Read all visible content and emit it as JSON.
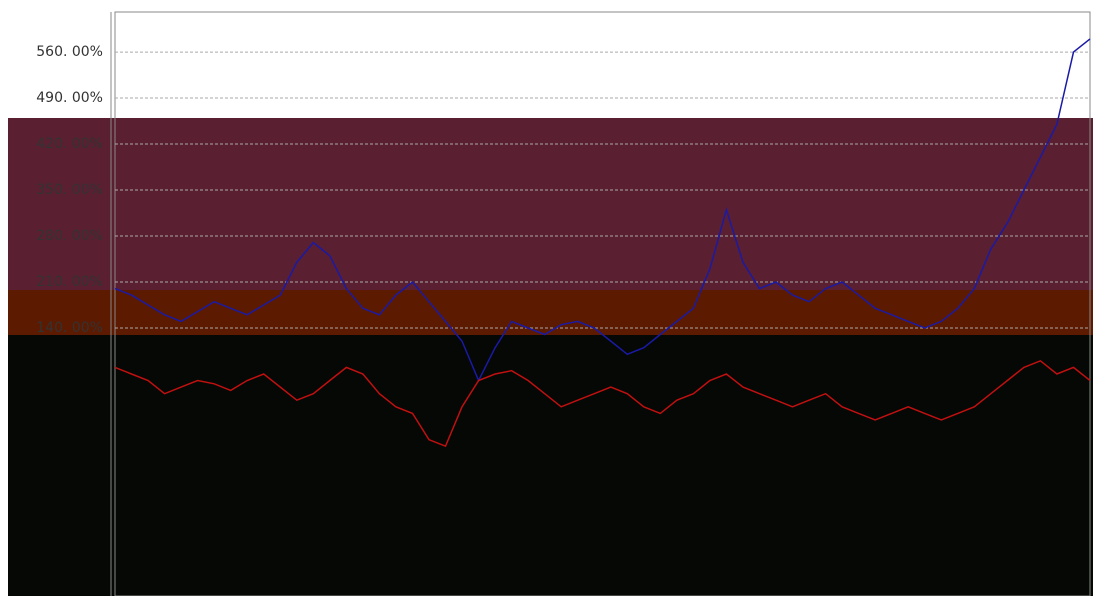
{
  "chart_data": {
    "type": "line",
    "series": [
      {
        "color": "#1a1aa6",
        "values": [
          200,
          190,
          175,
          160,
          150,
          165,
          180,
          170,
          160,
          175,
          190,
          240,
          270,
          250,
          200,
          170,
          160,
          190,
          210,
          180,
          150,
          120,
          60,
          110,
          150,
          140,
          130,
          145,
          150,
          140,
          120,
          100,
          110,
          130,
          150,
          170,
          230,
          320,
          240,
          200,
          210,
          190,
          180,
          200,
          210,
          190,
          170,
          160,
          150,
          140,
          150,
          170,
          200,
          260,
          300,
          350,
          400,
          450,
          560,
          580
        ]
      },
      {
        "color": "#c01010",
        "values": [
          80,
          70,
          60,
          40,
          50,
          60,
          55,
          45,
          60,
          70,
          50,
          30,
          40,
          60,
          80,
          70,
          40,
          20,
          10,
          -30,
          -40,
          20,
          60,
          70,
          75,
          60,
          40,
          20,
          30,
          40,
          50,
          40,
          20,
          10,
          30,
          40,
          60,
          70,
          50,
          40,
          30,
          20,
          30,
          40,
          20,
          10,
          0,
          10,
          20,
          10,
          0,
          10,
          20,
          40,
          60,
          80,
          90,
          70,
          80,
          60
        ]
      }
    ],
    "ylim": [
      -268,
      621
    ],
    "yticks": [
      {
        "value": 140,
        "label": "140. 00%"
      },
      {
        "value": 210,
        "label": "210. 00%"
      },
      {
        "value": 280,
        "label": "280. 00%"
      },
      {
        "value": 350,
        "label": "350. 00%"
      },
      {
        "value": 420,
        "label": "420. 00%"
      },
      {
        "value": 490,
        "label": "490. 00%"
      },
      {
        "value": 560,
        "label": "560. 00%"
      }
    ],
    "grid": true
  }
}
